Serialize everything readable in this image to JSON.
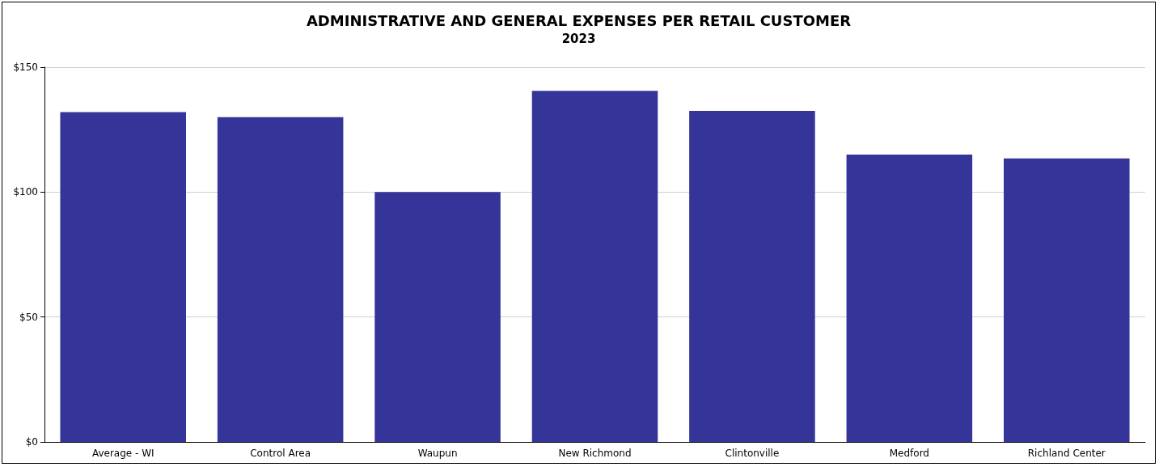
{
  "chart_data": {
    "type": "bar",
    "title": "ADMINISTRATIVE AND GENERAL EXPENSES PER RETAIL CUSTOMER",
    "subtitle": "2023",
    "categories": [
      "Average - WI",
      "Control Area",
      "Waupun",
      "New Richmond",
      "Clintonville",
      "Medford",
      "Richland Center"
    ],
    "values": [
      132,
      130,
      100,
      140.5,
      132.5,
      115,
      113.5
    ],
    "color": "#343499",
    "ylim": [
      0,
      150
    ],
    "yticks": [
      {
        "value": 0,
        "label": "$0"
      },
      {
        "value": 50,
        "label": "$50"
      },
      {
        "value": 100,
        "label": "$100"
      },
      {
        "value": 150,
        "label": "$150"
      }
    ],
    "grid": "y"
  }
}
